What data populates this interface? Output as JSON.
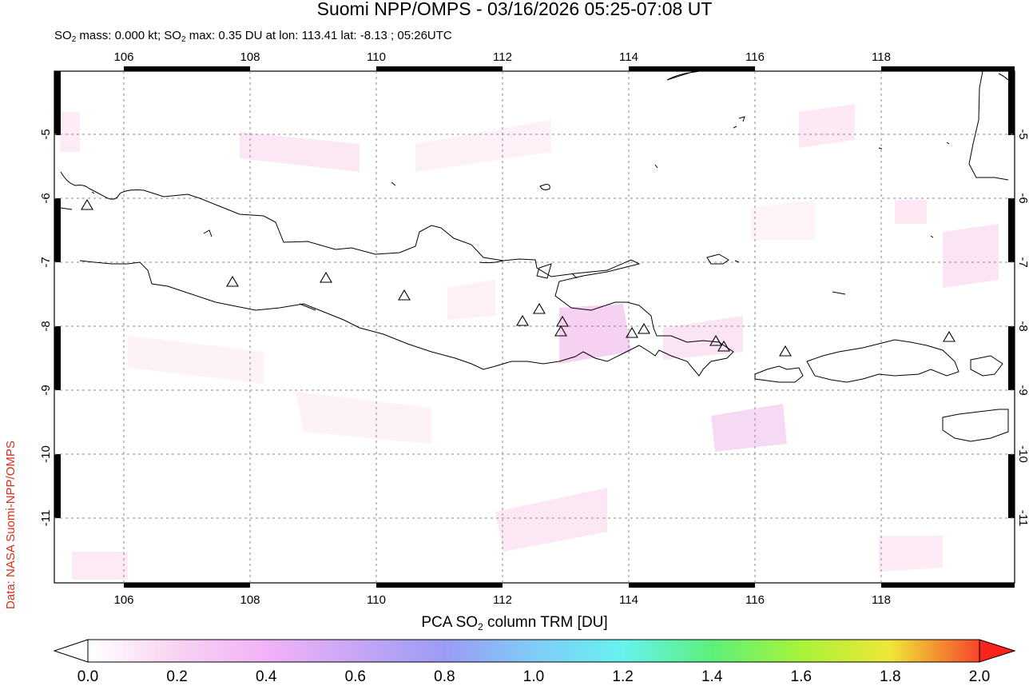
{
  "header": {
    "title": "Suomi NPP/OMPS - 03/16/2026 05:25-07:08 UT",
    "subtitle_a": "SO",
    "subtitle_sub": "2",
    "subtitle_b": " mass: 0.000 kt; SO",
    "subtitle_sub2": "2",
    "subtitle_c": " max: 0.35 DU at lon: 113.41 lat: -8.13 ; 05:26UTC"
  },
  "credit": "Data: NASA Suomi-NPP/OMPS",
  "map": {
    "lon_ticks": [
      "106",
      "108",
      "110",
      "112",
      "114",
      "116",
      "118"
    ],
    "lat_ticks": [
      "-5",
      "-6",
      "-7",
      "-8",
      "-9",
      "-10",
      "-11"
    ],
    "lon_range": [
      105.0,
      120.2
    ],
    "lat_range": [
      -12.1,
      -4.0
    ],
    "colors": {
      "coast": "#000000",
      "grid": "#777777",
      "so2_low": "#fde6f3",
      "so2_mid": "#f7c4f0"
    }
  },
  "colorbar": {
    "title_a": "PCA SO",
    "title_sub": "2",
    "title_b": " column TRM [DU]",
    "labels": [
      "0.0",
      "0.2",
      "0.4",
      "0.6",
      "0.8",
      "1.0",
      "1.2",
      "1.4",
      "1.6",
      "1.8",
      "2.0"
    ],
    "colors": [
      "#ffffff",
      "#f5c6ef",
      "#e9a8f7",
      "#a49af5",
      "#8cc4f7",
      "#66f3f3",
      "#5cf08f",
      "#8ff53d",
      "#eef23a",
      "#f7a530",
      "#f7241c"
    ]
  }
}
